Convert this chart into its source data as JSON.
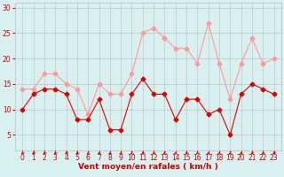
{
  "x": [
    0,
    1,
    2,
    3,
    4,
    5,
    6,
    7,
    8,
    9,
    10,
    11,
    12,
    13,
    14,
    15,
    16,
    17,
    18,
    19,
    20,
    21,
    22,
    23
  ],
  "vent_moyen": [
    10,
    13,
    14,
    14,
    13,
    8,
    8,
    12,
    6,
    6,
    13,
    16,
    13,
    13,
    8,
    12,
    12,
    9,
    10,
    5,
    13,
    15,
    14,
    13
  ],
  "rafales": [
    14,
    14,
    17,
    17,
    15,
    14,
    9,
    15,
    13,
    13,
    17,
    25,
    26,
    24,
    22,
    22,
    19,
    27,
    19,
    12,
    19,
    24,
    19,
    20
  ],
  "wind_dirs": [
    225,
    225,
    225,
    225,
    225,
    225,
    270,
    270,
    270,
    270,
    270,
    315,
    315,
    270,
    270,
    315,
    315,
    270,
    270,
    270,
    270,
    315,
    315,
    315
  ],
  "color_moyen": "#dd0000",
  "color_rafales": "#ff9999",
  "bg_color": "#d8f0f0",
  "grid_color": "#bbbbbb",
  "xlabel": "Vent moyen/en rafales ( km/h )",
  "xlabel_color": "#cc0000",
  "tick_color": "#cc0000",
  "ylim": [
    2,
    31
  ],
  "yticks": [
    5,
    10,
    15,
    20,
    25,
    30
  ],
  "xticks": [
    0,
    1,
    2,
    3,
    4,
    5,
    6,
    7,
    8,
    9,
    10,
    11,
    12,
    13,
    14,
    15,
    16,
    17,
    18,
    19,
    20,
    21,
    22,
    23
  ],
  "marker_size": 2.5,
  "line_width": 0.8
}
